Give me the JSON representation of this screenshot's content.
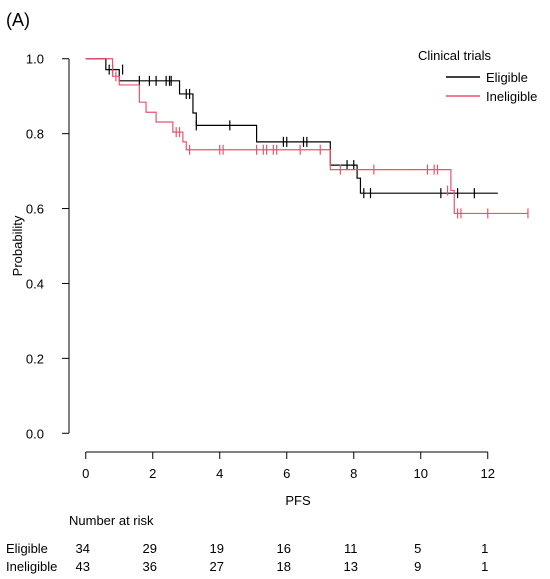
{
  "chart_data": {
    "type": "kaplan-meier step line",
    "panel_label": "(A)",
    "xlabel": "PFS",
    "ylabel": "Probability",
    "xlim": [
      -0.5,
      13.5
    ],
    "ylim": [
      -0.05,
      1.05
    ],
    "x_ticks": [
      0,
      2,
      4,
      6,
      8,
      10,
      12
    ],
    "y_ticks": [
      0.0,
      0.2,
      0.4,
      0.6,
      0.8,
      1.0
    ],
    "y_tick_labels": [
      "0.0",
      "0.2",
      "0.4",
      "0.6",
      "0.8",
      "1.0"
    ],
    "grid": false,
    "legend_title": "Clinical trials",
    "legend_position": "top-right",
    "series": [
      {
        "name": "Eligible",
        "color": "#000000",
        "steps": [
          [
            0,
            1.0
          ],
          [
            0.6,
            0.971
          ],
          [
            1.0,
            0.941
          ],
          [
            2.6,
            0.941
          ],
          [
            2.8,
            0.906
          ],
          [
            3.2,
            0.855
          ],
          [
            3.3,
            0.822
          ],
          [
            5.1,
            0.778
          ],
          [
            7.3,
            0.716
          ],
          [
            8.1,
            0.681
          ],
          [
            8.2,
            0.641
          ],
          [
            12.3,
            0.641
          ]
        ],
        "censored": [
          [
            0.7,
            0.971
          ],
          [
            0.8,
            0.971
          ],
          [
            1.1,
            0.971
          ],
          [
            1.6,
            0.941
          ],
          [
            1.9,
            0.941
          ],
          [
            2.1,
            0.941
          ],
          [
            2.4,
            0.941
          ],
          [
            2.5,
            0.941
          ],
          [
            2.55,
            0.941
          ],
          [
            3.0,
            0.906
          ],
          [
            3.1,
            0.906
          ],
          [
            3.3,
            0.822
          ],
          [
            4.3,
            0.822
          ],
          [
            5.9,
            0.778
          ],
          [
            6.0,
            0.778
          ],
          [
            6.5,
            0.778
          ],
          [
            6.6,
            0.778
          ],
          [
            7.8,
            0.716
          ],
          [
            8.0,
            0.716
          ],
          [
            8.3,
            0.641
          ],
          [
            8.5,
            0.641
          ],
          [
            10.6,
            0.641
          ],
          [
            11.1,
            0.641
          ],
          [
            11.6,
            0.641
          ]
        ]
      },
      {
        "name": "Ineligible",
        "color": "#e8546f",
        "steps": [
          [
            0,
            1.0
          ],
          [
            0.8,
            0.953
          ],
          [
            1.0,
            0.93
          ],
          [
            1.6,
            0.884
          ],
          [
            1.8,
            0.857
          ],
          [
            2.1,
            0.831
          ],
          [
            2.6,
            0.804
          ],
          [
            2.9,
            0.778
          ],
          [
            3.0,
            0.757
          ],
          [
            7.3,
            0.704
          ],
          [
            10.9,
            0.648
          ],
          [
            11.0,
            0.587
          ],
          [
            13.2,
            0.587
          ]
        ],
        "censored": [
          [
            0.9,
            0.953
          ],
          [
            2.7,
            0.804
          ],
          [
            2.8,
            0.804
          ],
          [
            3.1,
            0.757
          ],
          [
            4.0,
            0.757
          ],
          [
            4.1,
            0.757
          ],
          [
            5.1,
            0.757
          ],
          [
            5.3,
            0.757
          ],
          [
            5.4,
            0.757
          ],
          [
            5.6,
            0.757
          ],
          [
            5.7,
            0.757
          ],
          [
            6.4,
            0.757
          ],
          [
            7.0,
            0.757
          ],
          [
            7.6,
            0.704
          ],
          [
            8.6,
            0.704
          ],
          [
            10.2,
            0.704
          ],
          [
            10.4,
            0.704
          ],
          [
            10.5,
            0.704
          ],
          [
            10.8,
            0.648
          ],
          [
            11.1,
            0.587
          ],
          [
            11.2,
            0.587
          ],
          [
            12.0,
            0.587
          ],
          [
            13.2,
            0.587
          ]
        ]
      }
    ]
  },
  "risk_table": {
    "title": "Number at risk",
    "time_points": [
      0,
      2,
      4,
      6,
      8,
      10,
      12
    ],
    "rows": [
      {
        "label": "Eligible",
        "counts": [
          "34",
          "29",
          "19",
          "16",
          "11",
          "5",
          "1"
        ]
      },
      {
        "label": "Ineligible",
        "counts": [
          "43",
          "36",
          "27",
          "18",
          "13",
          "9",
          "1"
        ]
      }
    ]
  }
}
